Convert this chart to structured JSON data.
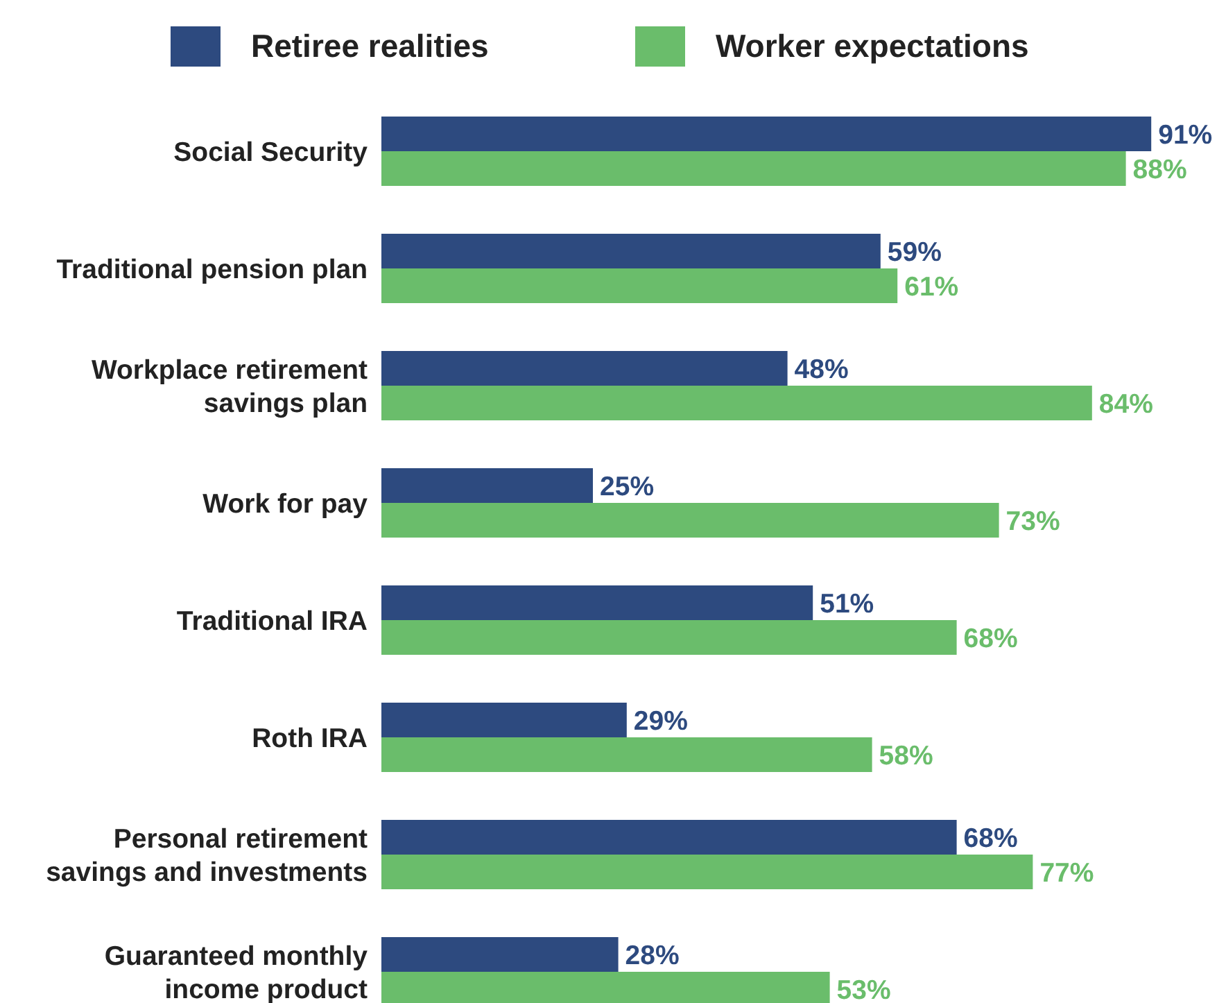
{
  "chart_data": {
    "type": "bar",
    "orientation": "horizontal",
    "categories": [
      "Social Security",
      "Traditional pension plan",
      "Workplace retirement\nsavings plan",
      "Work for pay",
      "Traditional IRA",
      "Roth IRA",
      "Personal retirement\nsavings and investments",
      "Guaranteed monthly\nincome product"
    ],
    "series": [
      {
        "name": "Retiree realities",
        "color": "#2d4a7f",
        "values": [
          91,
          59,
          48,
          25,
          51,
          29,
          68,
          28
        ],
        "value_labels": [
          "91%",
          "59%",
          "48%",
          "25%",
          "51%",
          "29%",
          "68%",
          "28%"
        ]
      },
      {
        "name": "Worker expectations",
        "color": "#6abd6b",
        "values": [
          88,
          61,
          84,
          73,
          68,
          58,
          77,
          53
        ],
        "value_labels": [
          "88%",
          "61%",
          "84%",
          "73%",
          "68%",
          "58%",
          "77%",
          "53%"
        ]
      }
    ],
    "xlim": [
      0,
      100
    ],
    "legend": "top",
    "tick_labels": "y"
  }
}
